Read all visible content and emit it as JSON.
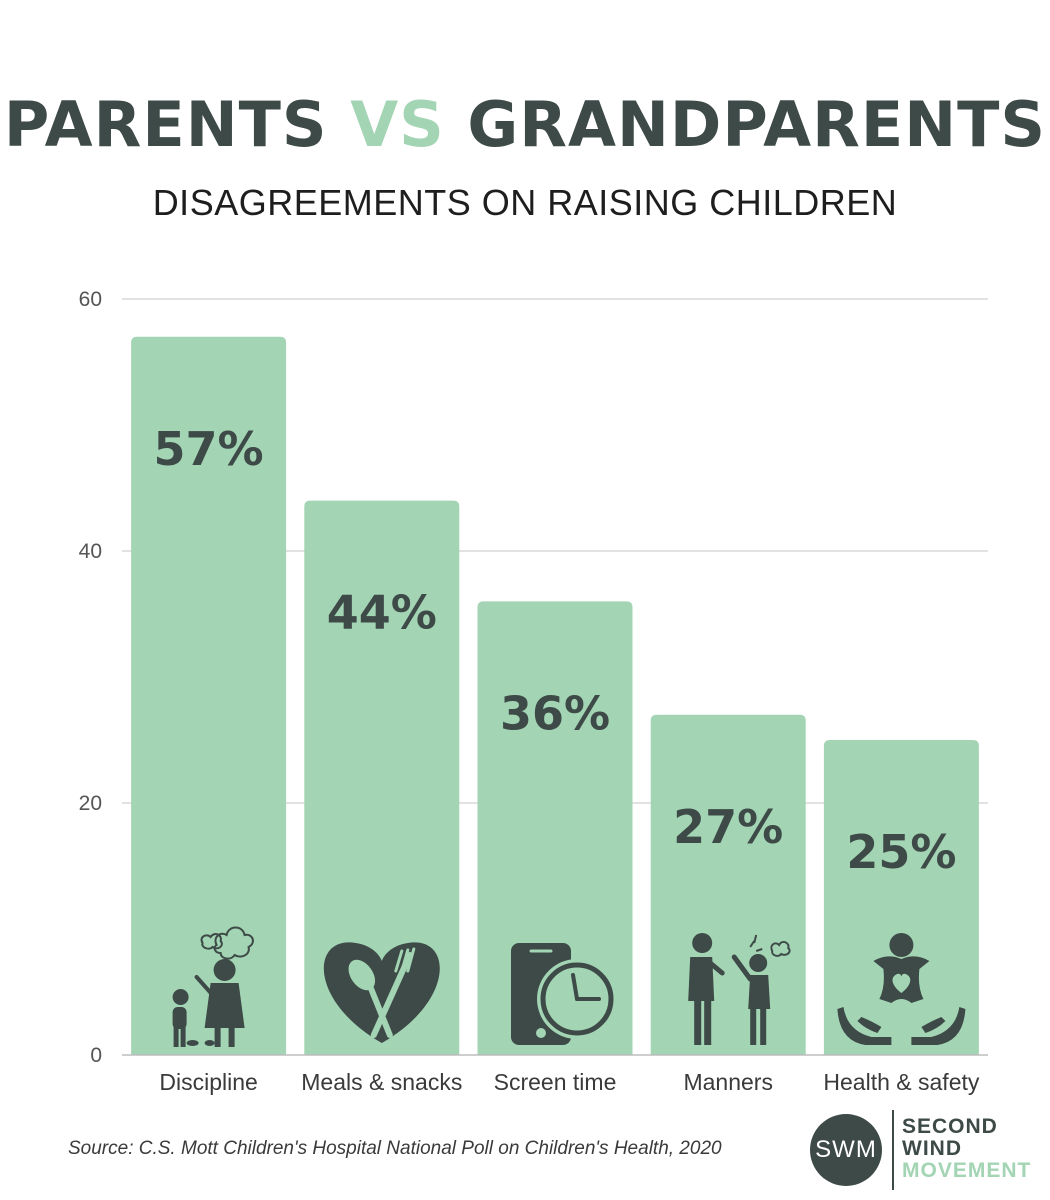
{
  "header": {
    "title_part1": "PARENTS",
    "title_vs": "VS",
    "title_part2": "GRANDPARENTS",
    "subtitle": "DISAGREEMENTS ON RAISING CHILDREN"
  },
  "chart_data": {
    "type": "bar",
    "title": "PARENTS VS GRANDPARENTS",
    "subtitle": "DISAGREEMENTS ON RAISING CHILDREN",
    "categories": [
      "Discipline",
      "Meals & snacks",
      "Screen time",
      "Manners",
      "Health & safety"
    ],
    "values": [
      57,
      44,
      36,
      27,
      25
    ],
    "data_labels": [
      "57%",
      "44%",
      "36%",
      "27%",
      "25%"
    ],
    "icons": [
      "grandparent-scolding-child-icon",
      "heart-spoon-fork-icon",
      "phone-clock-icon",
      "arguing-people-icon",
      "hands-holding-baby-icon"
    ],
    "ylim": [
      0,
      60
    ],
    "yticks": [
      0,
      20,
      40,
      60
    ],
    "ytick_labels": [
      "0",
      "20",
      "40",
      "60"
    ],
    "grid": true,
    "legend": "none",
    "xlabel": "",
    "ylabel": ""
  },
  "footer": {
    "source": "Source: C.S. Mott Children's Hospital National Poll on Children's Health, 2020"
  },
  "logo": {
    "monogram": "SWM",
    "line1": "SECOND",
    "line2": "WIND",
    "line3": "MOVEMENT"
  },
  "colors": {
    "bar": "#a3d4b4",
    "dark": "#3d4a47",
    "accent": "#a3d4b4",
    "grid": "#d9d9d9"
  }
}
